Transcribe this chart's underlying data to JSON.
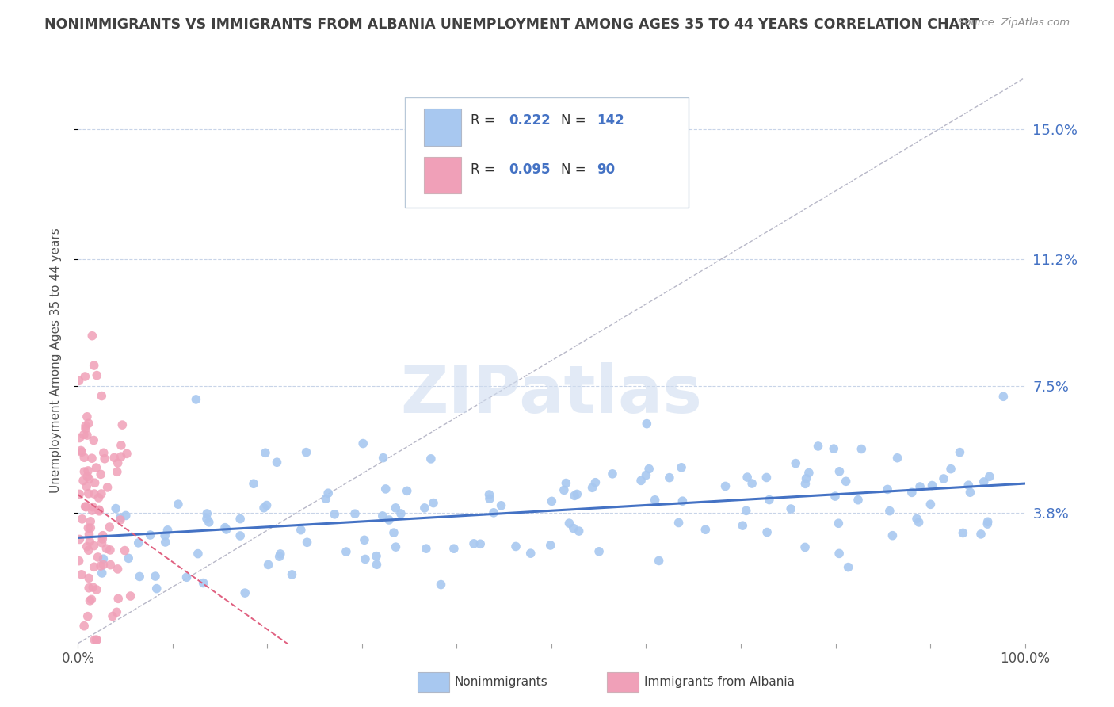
{
  "title": "NONIMMIGRANTS VS IMMIGRANTS FROM ALBANIA UNEMPLOYMENT AMONG AGES 35 TO 44 YEARS CORRELATION CHART",
  "source": "Source: ZipAtlas.com",
  "ylabel": "Unemployment Among Ages 35 to 44 years",
  "xlim": [
    0.0,
    1.0
  ],
  "ylim": [
    0.0,
    0.165
  ],
  "yticks": [
    0.038,
    0.075,
    0.112,
    0.15
  ],
  "ytick_labels": [
    "3.8%",
    "7.5%",
    "11.2%",
    "15.0%"
  ],
  "xtick_positions": [
    0.0,
    0.1,
    0.2,
    0.3,
    0.4,
    0.5,
    0.6,
    0.7,
    0.8,
    0.9,
    1.0
  ],
  "xtick_labels_visible": [
    "0.0%",
    "",
    "",
    "",
    "",
    "",
    "",
    "",
    "",
    "",
    "100.0%"
  ],
  "nonimmigrant_R": 0.222,
  "nonimmigrant_N": 142,
  "immigrant_R": 0.095,
  "immigrant_N": 90,
  "nonimmigrant_color": "#a8c8f0",
  "immigrant_color": "#f0a0b8",
  "nonimmigrant_line_color": "#4472c4",
  "immigrant_line_color": "#e06080",
  "diagonal_line_color": "#b8b8c8",
  "title_color": "#404040",
  "source_color": "#909090",
  "legend_color": "#4472c4",
  "immigrant_legend_color": "#e06080",
  "watermark_color": "#d0ddf0",
  "background_color": "#ffffff",
  "grid_color": "#c8d4e8",
  "bottom_legend_nonimm": "Nonimmigrants",
  "bottom_legend_imm": "Immigrants from Albania"
}
